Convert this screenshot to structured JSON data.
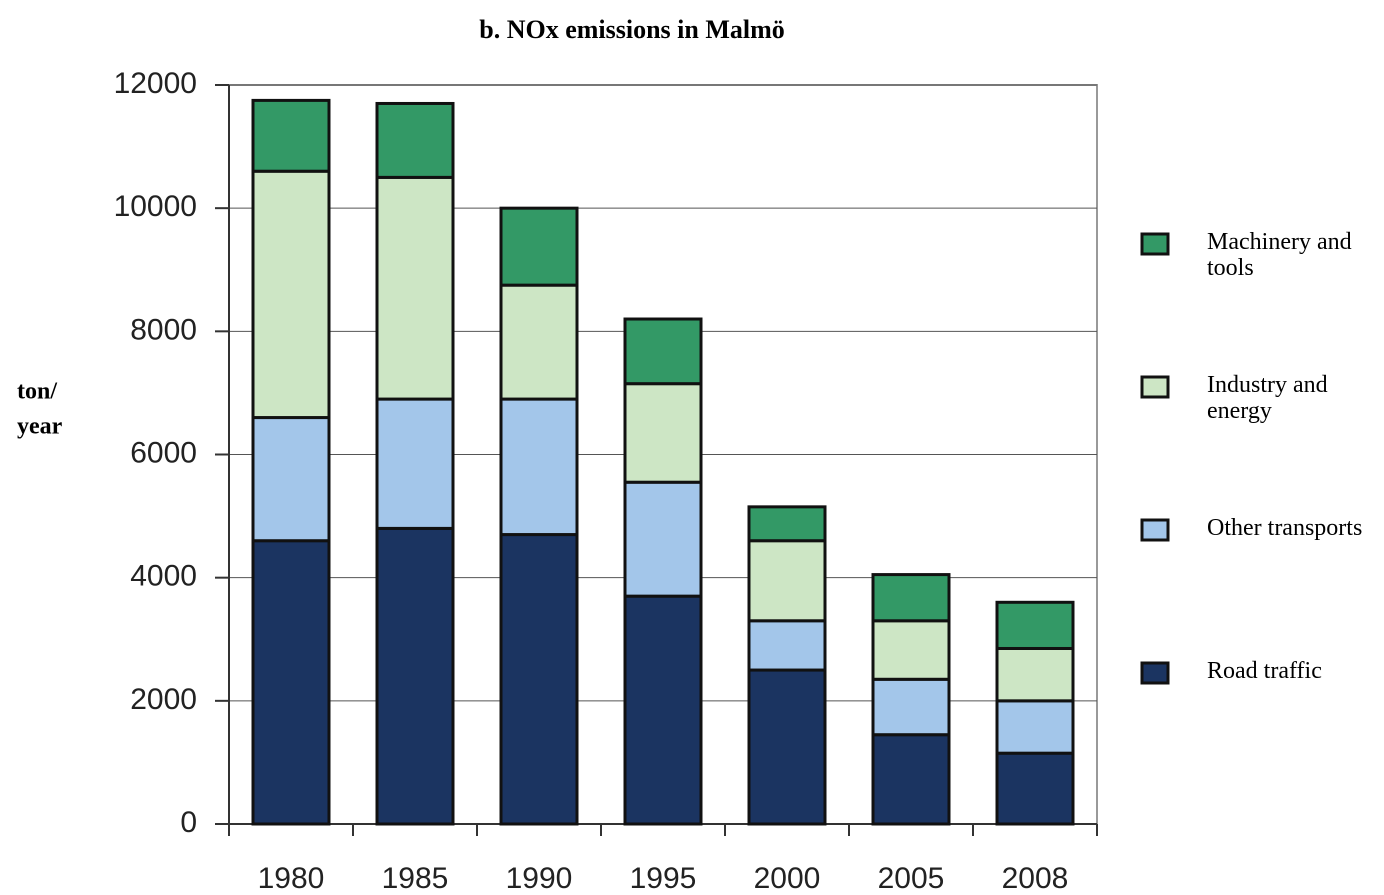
{
  "chart_data": {
    "type": "stacked_bar",
    "title": "b. NOx emissions in Malmö",
    "ylabel": [
      "ton/",
      "year"
    ],
    "categories": [
      "1980",
      "1985",
      "1990",
      "1995",
      "2000",
      "2005",
      "2008"
    ],
    "series": [
      {
        "name": "Road traffic",
        "color": "#1b3461",
        "values": [
          4600,
          4800,
          4700,
          3700,
          2500,
          1450,
          1150
        ]
      },
      {
        "name": "Other transports",
        "color": "#a3c6ea",
        "values": [
          2000,
          2100,
          2200,
          1850,
          800,
          900,
          850
        ]
      },
      {
        "name": "Industry and energy",
        "color": "#cde6c5",
        "values": [
          4000,
          3600,
          1850,
          1600,
          1300,
          950,
          850
        ]
      },
      {
        "name": "Machinery and tools",
        "color": "#339966",
        "values": [
          1150,
          1200,
          1250,
          1050,
          550,
          750,
          750
        ]
      }
    ],
    "ylim": [
      0,
      12000
    ],
    "yticks": [
      0,
      2000,
      4000,
      6000,
      8000,
      10000,
      12000
    ],
    "grid": true,
    "legend": "right"
  }
}
